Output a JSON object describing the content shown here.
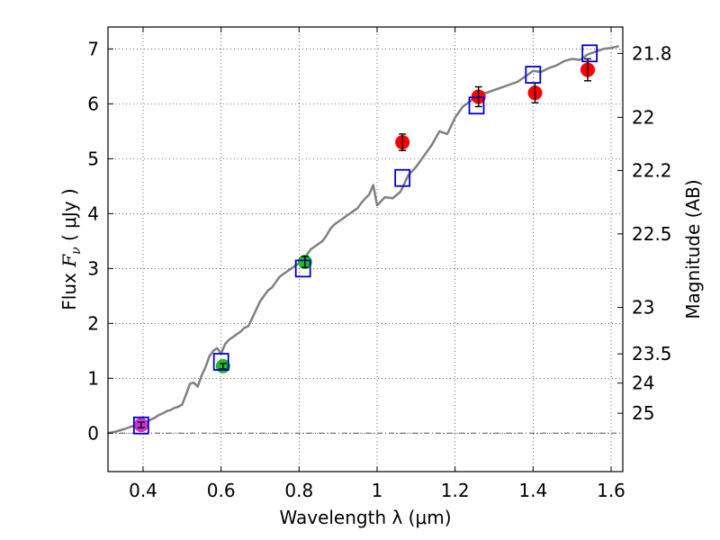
{
  "chart_data": {
    "type": "scatter",
    "xlabel": "Wavelength  λ (μm)",
    "ylabel_parts": {
      "prefix": "Flux  ",
      "symbol": "F",
      "subscript": "ν",
      "units": "  ( μJy )"
    },
    "y2label": "Magnitude (AB)",
    "xlim": [
      0.31,
      1.63
    ],
    "ylim": [
      -0.7,
      7.4
    ],
    "grid": true,
    "x_ticks": [
      0.4,
      0.6,
      0.8,
      1.0,
      1.2,
      1.4,
      1.6
    ],
    "x_tick_labels": [
      "0.4",
      "0.6",
      "0.8",
      "1",
      "1.2",
      "1.4",
      "1.6"
    ],
    "y_ticks": [
      0,
      1,
      2,
      3,
      4,
      5,
      6,
      7
    ],
    "y_tick_labels": [
      "0",
      "1",
      "2",
      "3",
      "4",
      "5",
      "6",
      "7"
    ],
    "mag_ticks": [
      21.8,
      22,
      22.2,
      22.5,
      23,
      23.5,
      24,
      25
    ],
    "mag_tick_labels": [
      "21.8",
      "22",
      "22.2",
      "22.5",
      "23",
      "23.5",
      "24",
      "25"
    ],
    "zero_line": {
      "style": "dash-dot",
      "y": 0
    },
    "model_spectrum": {
      "name": "template",
      "color": "#808080",
      "x": [
        0.31,
        0.33,
        0.35,
        0.37,
        0.38,
        0.39,
        0.4,
        0.41,
        0.42,
        0.43,
        0.44,
        0.45,
        0.46,
        0.47,
        0.48,
        0.49,
        0.5,
        0.51,
        0.52,
        0.53,
        0.54,
        0.55,
        0.56,
        0.57,
        0.58,
        0.59,
        0.6,
        0.61,
        0.62,
        0.63,
        0.64,
        0.65,
        0.66,
        0.67,
        0.68,
        0.69,
        0.7,
        0.71,
        0.72,
        0.73,
        0.74,
        0.75,
        0.76,
        0.77,
        0.78,
        0.79,
        0.8,
        0.81,
        0.82,
        0.83,
        0.84,
        0.85,
        0.86,
        0.87,
        0.88,
        0.89,
        0.9,
        0.91,
        0.92,
        0.93,
        0.94,
        0.95,
        0.96,
        0.97,
        0.98,
        0.99,
        1.0,
        1.02,
        1.04,
        1.06,
        1.08,
        1.1,
        1.12,
        1.14,
        1.16,
        1.18,
        1.2,
        1.22,
        1.24,
        1.26,
        1.28,
        1.3,
        1.32,
        1.34,
        1.36,
        1.38,
        1.4,
        1.42,
        1.44,
        1.46,
        1.48,
        1.5,
        1.52,
        1.54,
        1.56,
        1.58,
        1.6,
        1.62
      ],
      "y": [
        0.0,
        0.03,
        0.07,
        0.12,
        0.14,
        0.16,
        0.18,
        0.21,
        0.25,
        0.28,
        0.33,
        0.36,
        0.4,
        0.42,
        0.46,
        0.48,
        0.52,
        0.7,
        0.9,
        0.92,
        0.85,
        1.05,
        1.2,
        1.4,
        1.5,
        1.55,
        1.45,
        1.62,
        1.7,
        1.75,
        1.8,
        1.85,
        1.92,
        1.95,
        2.1,
        2.25,
        2.4,
        2.5,
        2.6,
        2.65,
        2.75,
        2.85,
        2.9,
        2.95,
        3.0,
        3.05,
        3.1,
        3.15,
        3.25,
        3.35,
        3.4,
        3.45,
        3.5,
        3.6,
        3.72,
        3.8,
        3.85,
        3.9,
        3.95,
        4.0,
        4.05,
        4.1,
        4.2,
        4.28,
        4.35,
        4.52,
        4.15,
        4.3,
        4.28,
        4.4,
        4.7,
        4.85,
        5.05,
        5.25,
        5.5,
        5.45,
        5.75,
        5.95,
        6.05,
        6.2,
        6.2,
        6.25,
        6.3,
        6.35,
        6.4,
        6.5,
        6.6,
        6.58,
        6.65,
        6.7,
        6.78,
        6.82,
        6.8,
        6.9,
        6.95,
        7.0,
        7.02,
        7.05
      ]
    },
    "series": [
      {
        "name": "photometry-blue",
        "color": "#cc33cc",
        "marker": "circle",
        "x": [
          0.395
        ],
        "y": [
          0.15
        ],
        "yerr": [
          0.05
        ]
      },
      {
        "name": "photometry-green",
        "color": "#22bb22",
        "marker": "circle",
        "x": [
          0.605,
          0.815
        ],
        "y": [
          1.22,
          3.12
        ],
        "yerr": [
          0.05,
          0.1
        ]
      },
      {
        "name": "photometry-red",
        "color": "#ff0000",
        "marker": "circle",
        "x": [
          1.065,
          1.26,
          1.405,
          1.54
        ],
        "y": [
          5.3,
          6.13,
          6.2,
          6.62
        ],
        "yerr": [
          0.15,
          0.18,
          0.18,
          0.2
        ]
      },
      {
        "name": "model-fluxes",
        "color": "#0000cc",
        "marker": "open-square",
        "x": [
          0.395,
          0.6,
          0.81,
          1.065,
          1.255,
          1.4,
          1.545
        ],
        "y": [
          0.14,
          1.3,
          3.0,
          4.65,
          5.97,
          6.53,
          6.92
        ]
      }
    ]
  }
}
